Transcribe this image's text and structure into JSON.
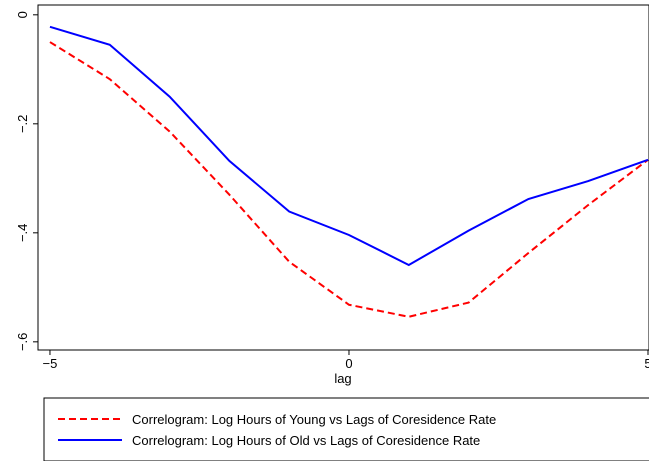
{
  "chart_data": {
    "type": "line",
    "x": [
      -5,
      -4,
      -3,
      -2,
      -1,
      0,
      1,
      2,
      3,
      4,
      5
    ],
    "series": [
      {
        "name": "Correlogram: Log Hours of Young vs Lags of Coresidence Rate",
        "color": "#ff0000",
        "dash": true,
        "values": [
          -0.05,
          -0.118,
          -0.214,
          -0.33,
          -0.453,
          -0.532,
          -0.554,
          -0.528,
          -0.437,
          -0.349,
          -0.266
        ]
      },
      {
        "name": "Correlogram: Log Hours of Old vs Lags of Coresidence Rate",
        "color": "#0000ff",
        "dash": false,
        "values": [
          -0.022,
          -0.055,
          -0.15,
          -0.268,
          -0.361,
          -0.404,
          -0.459,
          -0.396,
          -0.338,
          -0.305,
          -0.266
        ]
      }
    ],
    "xlabel": "lag",
    "xlim": [
      -5.2,
      5.0
    ],
    "ylim": [
      -0.615,
      0.018
    ],
    "xticks": [
      {
        "value": -5,
        "label": "−5"
      },
      0,
      5
    ],
    "yticks": [
      0,
      {
        "value": -0.2,
        "label": "−.2"
      },
      {
        "value": -0.4,
        "label": "−.4"
      },
      {
        "value": -0.6,
        "label": "−.6"
      }
    ]
  }
}
